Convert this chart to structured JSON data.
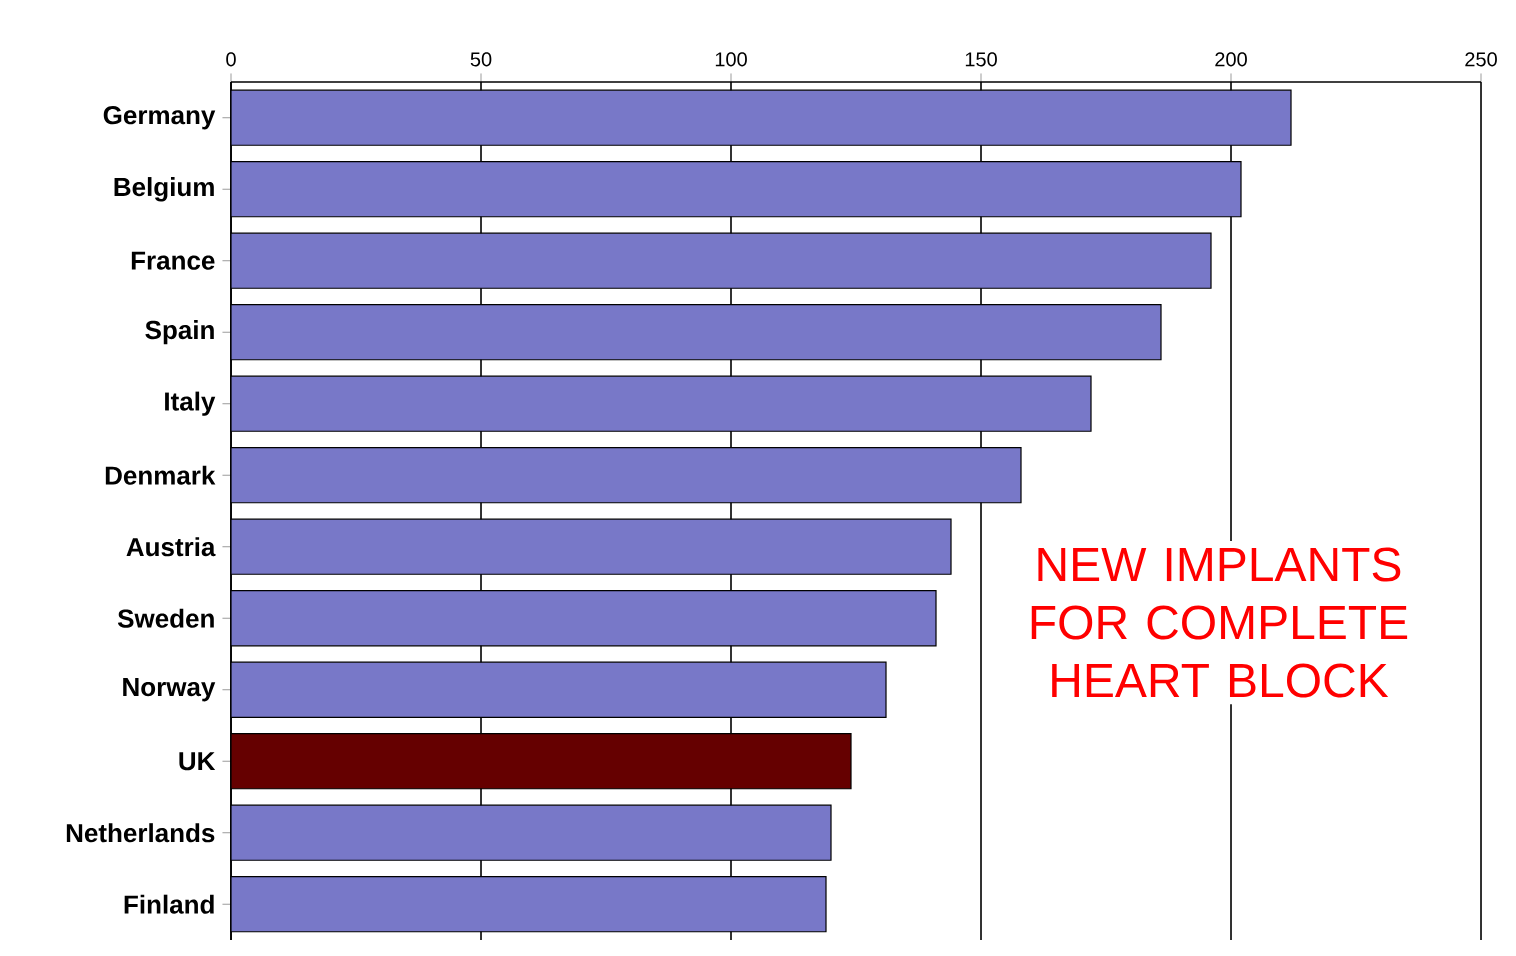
{
  "chart_data": {
    "type": "bar",
    "orientation": "horizontal",
    "categories": [
      "Germany",
      "Belgium",
      "France",
      "Spain",
      "Italy",
      "Denmark",
      "Austria",
      "Sweden",
      "Norway",
      "UK",
      "Netherlands",
      "Finland"
    ],
    "values": [
      212,
      202,
      196,
      186,
      172,
      158,
      144,
      141,
      131,
      124,
      120,
      119
    ],
    "colors": [
      "#7878c8",
      "#7878c8",
      "#7878c8",
      "#7878c8",
      "#7878c8",
      "#7878c8",
      "#7878c8",
      "#7878c8",
      "#7878c8",
      "#650000",
      "#7878c8",
      "#7878c8"
    ],
    "xlim": [
      0,
      250
    ],
    "xticks": [
      0,
      50,
      100,
      150,
      200,
      250
    ],
    "grid": "x",
    "annotations": [
      "NEW IMPLANTS FOR COMPLETE HEART BLOCK"
    ]
  }
}
